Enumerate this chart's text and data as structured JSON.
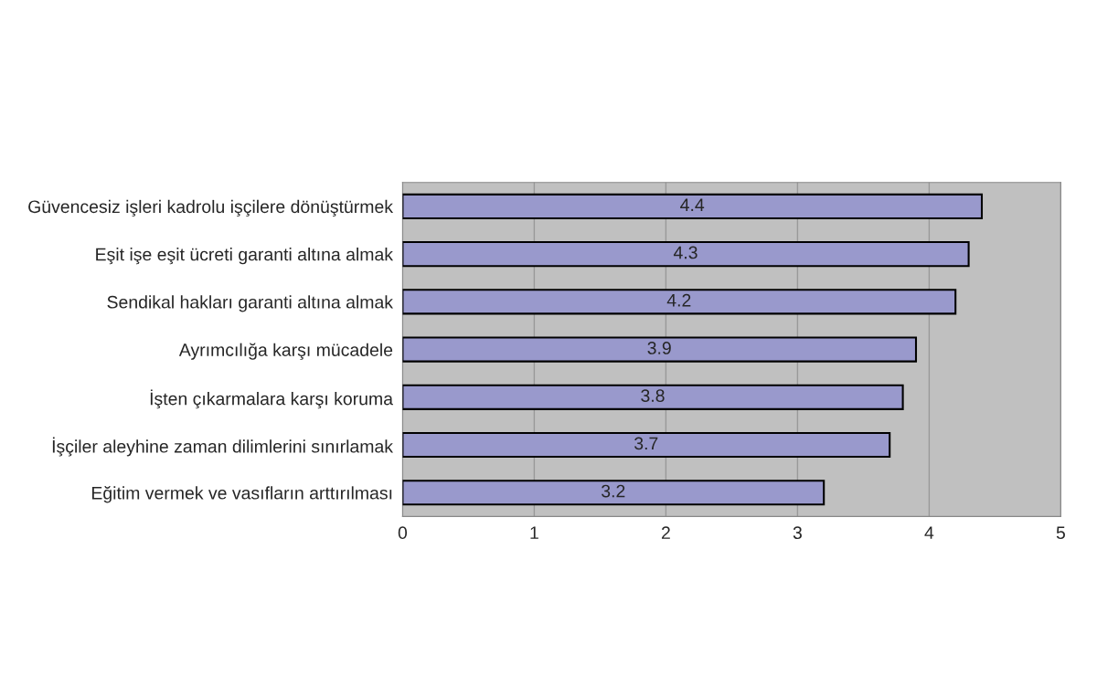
{
  "chart_data": {
    "type": "bar",
    "orientation": "horizontal",
    "categories": [
      "Güvencesiz işleri kadrolu işçilere dönüştürmek",
      "Eşit işe eşit ücreti garanti altına almak",
      "Sendikal hakları garanti altına almak",
      "Ayrımcılığa karşı mücadele",
      "İşten çıkarmalara karşı koruma",
      "İşçiler aleyhine zaman dilimlerini sınırlamak",
      "Eğitim vermek ve vasıfların arttırılması"
    ],
    "values": [
      4.4,
      4.3,
      4.2,
      3.9,
      3.8,
      3.7,
      3.2
    ],
    "color": "#9999cc",
    "xlim": [
      0,
      5
    ],
    "xticks": [
      0,
      1,
      2,
      3,
      4,
      5
    ],
    "grid": "x",
    "data_labels": true
  }
}
